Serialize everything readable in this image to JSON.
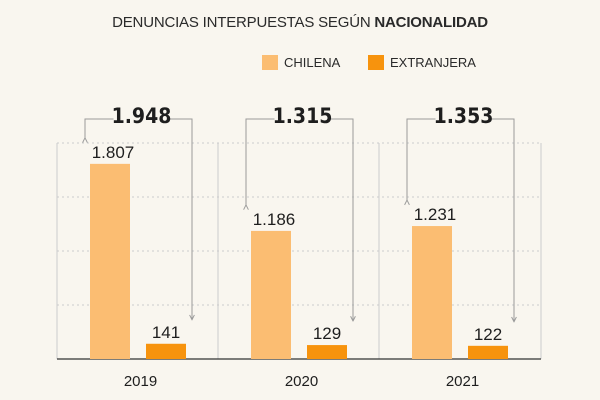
{
  "title": {
    "light": "DENUNCIAS INTERPUESTAS SEGÚN ",
    "bold": "NACIONALIDAD"
  },
  "colors": {
    "chilena": "#fbbd72",
    "extranjera": "#f7930d",
    "background": "#f9f6ef",
    "grid": "#cccccc",
    "connector": "#9a9a9a"
  },
  "chart_data": {
    "type": "bar",
    "categories": [
      "2019",
      "2020",
      "2021"
    ],
    "series": [
      {
        "name": "CHILENA",
        "values": [
          1807,
          1186,
          1231
        ],
        "labels": [
          "1.807",
          "1.186",
          "1.231"
        ]
      },
      {
        "name": "EXTRANJERA",
        "values": [
          141,
          129,
          122
        ],
        "labels": [
          "141",
          "129",
          "122"
        ]
      }
    ],
    "totals": [
      1948,
      1315,
      1353
    ],
    "total_labels": [
      "1.948",
      "1.315",
      "1.353"
    ],
    "ylim": [
      0,
      2000
    ],
    "grid": true,
    "legend_position": "top-right"
  }
}
